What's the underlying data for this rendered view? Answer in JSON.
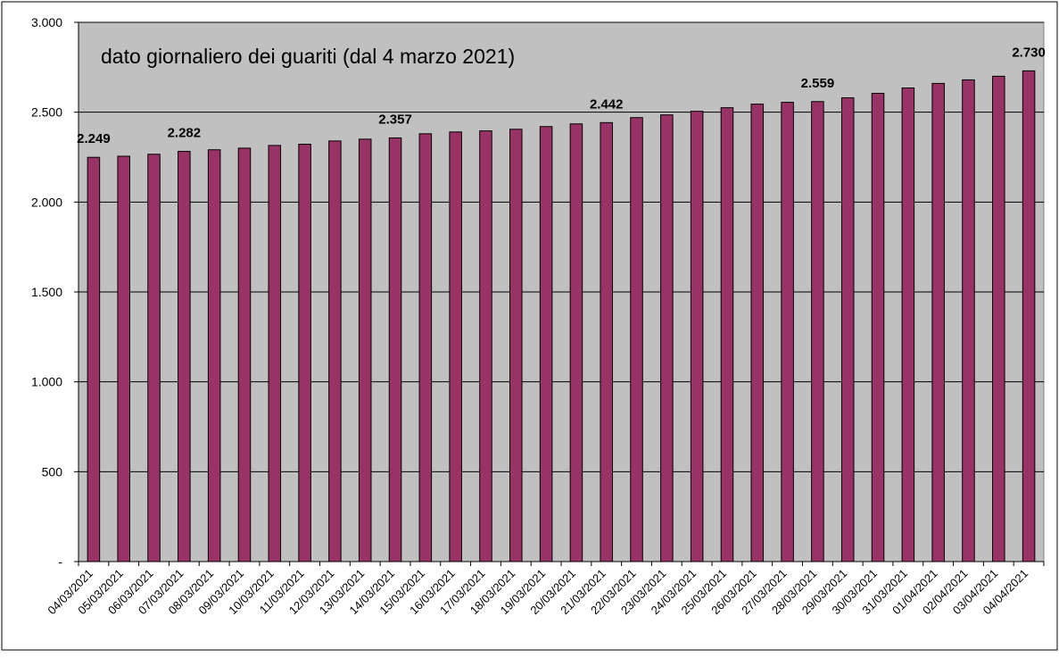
{
  "chart_data": {
    "type": "bar",
    "title": "dato giornaliero dei guariti (dal 4 marzo 2021)",
    "xlabel": "",
    "ylabel": "",
    "ylim": [
      0,
      3000
    ],
    "yticks": [
      0,
      500,
      1000,
      1500,
      2000,
      2500,
      3000
    ],
    "ytick_labels": [
      "-",
      "500",
      "1.000",
      "1.500",
      "2.000",
      "2.500",
      "3.000"
    ],
    "grid": true,
    "categories": [
      "04/03/2021",
      "05/03/2021",
      "06/03/2021",
      "07/03/2021",
      "08/03/2021",
      "09/03/2021",
      "10/03/2021",
      "11/03/2021",
      "12/03/2021",
      "13/03/2021",
      "14/03/2021",
      "15/03/2021",
      "16/03/2021",
      "17/03/2021",
      "18/03/2021",
      "19/03/2021",
      "20/03/2021",
      "21/03/2021",
      "22/03/2021",
      "23/03/2021",
      "24/03/2021",
      "25/03/2021",
      "26/03/2021",
      "27/03/2021",
      "28/03/2021",
      "29/03/2021",
      "30/03/2021",
      "31/03/2021",
      "01/04/2021",
      "02/04/2021",
      "03/04/2021",
      "04/04/2021"
    ],
    "values": [
      2249,
      2255,
      2266,
      2282,
      2291,
      2300,
      2315,
      2322,
      2340,
      2350,
      2357,
      2380,
      2390,
      2396,
      2405,
      2420,
      2435,
      2442,
      2470,
      2485,
      2505,
      2525,
      2545,
      2555,
      2559,
      2580,
      2605,
      2635,
      2660,
      2680,
      2700,
      2730
    ],
    "data_labels": [
      {
        "index": 0,
        "text": "2.249"
      },
      {
        "index": 3,
        "text": "2.282"
      },
      {
        "index": 10,
        "text": "2.357"
      },
      {
        "index": 17,
        "text": "2.442"
      },
      {
        "index": 24,
        "text": "2.559"
      },
      {
        "index": 31,
        "text": "2.730"
      }
    ],
    "colors": {
      "bar": "#993366",
      "bar_border": "#000000",
      "plot_area": "#c0c0c0",
      "gridline": "#000000"
    }
  }
}
